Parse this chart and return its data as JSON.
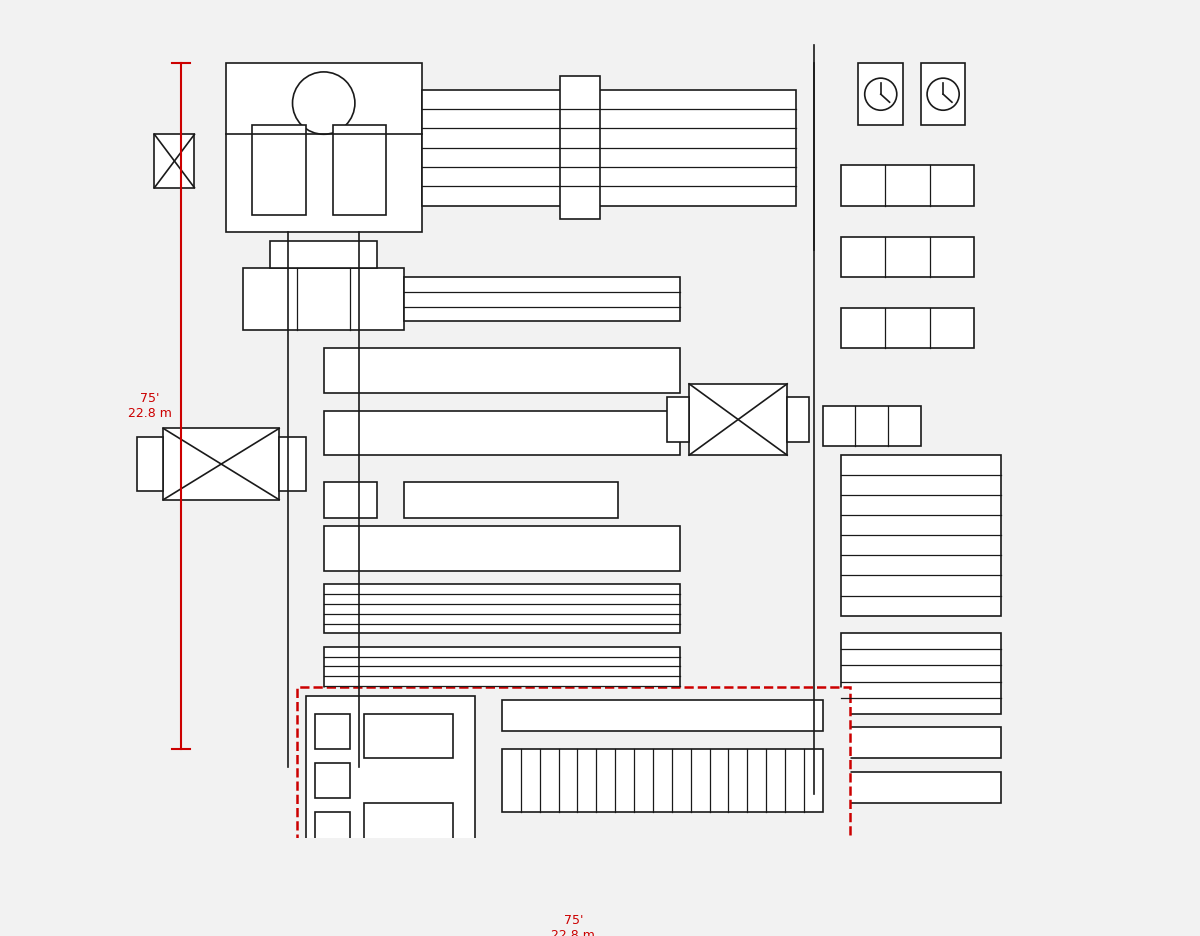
{
  "background_color": "#f2f2f2",
  "line_color": "#1a1a1a",
  "red_color": "#cc0000",
  "fig_width": 12.0,
  "fig_height": 9.36,
  "dpi": 100,
  "dim_vertical": "75'\n22.8 m",
  "dim_horizontal": "75'\n22.8 m"
}
